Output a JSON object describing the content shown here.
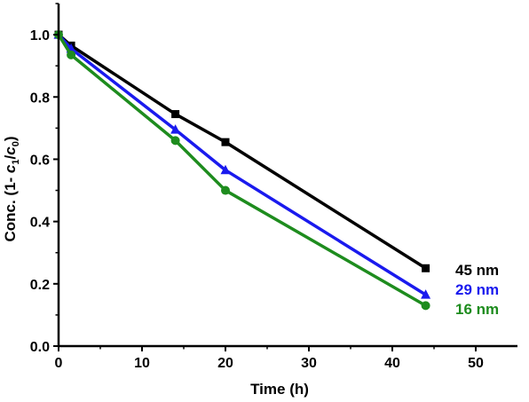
{
  "chart_data": {
    "type": "line",
    "title": "",
    "xlabel": "Time (h)",
    "ylabel": {
      "prefix": "Conc. (1- ",
      "c1": "c",
      "c1_sub": "1",
      "slash": "/",
      "c0": "c",
      "c0_sub": "0",
      "suffix": ")"
    },
    "xlim": [
      0,
      55
    ],
    "ylim": [
      0,
      1.1
    ],
    "xticks": [
      "0",
      "10",
      "20",
      "30",
      "40",
      "50"
    ],
    "xtick_values": [
      0,
      10,
      20,
      30,
      40,
      50
    ],
    "yticks": [
      "0.0",
      "0.2",
      "0.4",
      "0.6",
      "0.8",
      "1.0"
    ],
    "ytick_values": [
      0,
      0.2,
      0.4,
      0.6,
      0.8,
      1.0
    ],
    "grid": false,
    "legend_position": "right",
    "series": [
      {
        "name": "45 nm",
        "color": "#000000",
        "marker": "square",
        "x": [
          0,
          1.5,
          14,
          20,
          44
        ],
        "y": [
          1.0,
          0.965,
          0.745,
          0.655,
          0.25
        ]
      },
      {
        "name": "29 nm",
        "color": "#1a1aee",
        "marker": "triangle",
        "x": [
          0,
          1.5,
          14,
          20,
          44
        ],
        "y": [
          1.0,
          0.955,
          0.695,
          0.565,
          0.165
        ]
      },
      {
        "name": "16 nm",
        "color": "#1e8c1e",
        "marker": "circle",
        "x": [
          0,
          1.5,
          14,
          20,
          44
        ],
        "y": [
          1.0,
          0.935,
          0.66,
          0.5,
          0.13
        ]
      }
    ]
  }
}
